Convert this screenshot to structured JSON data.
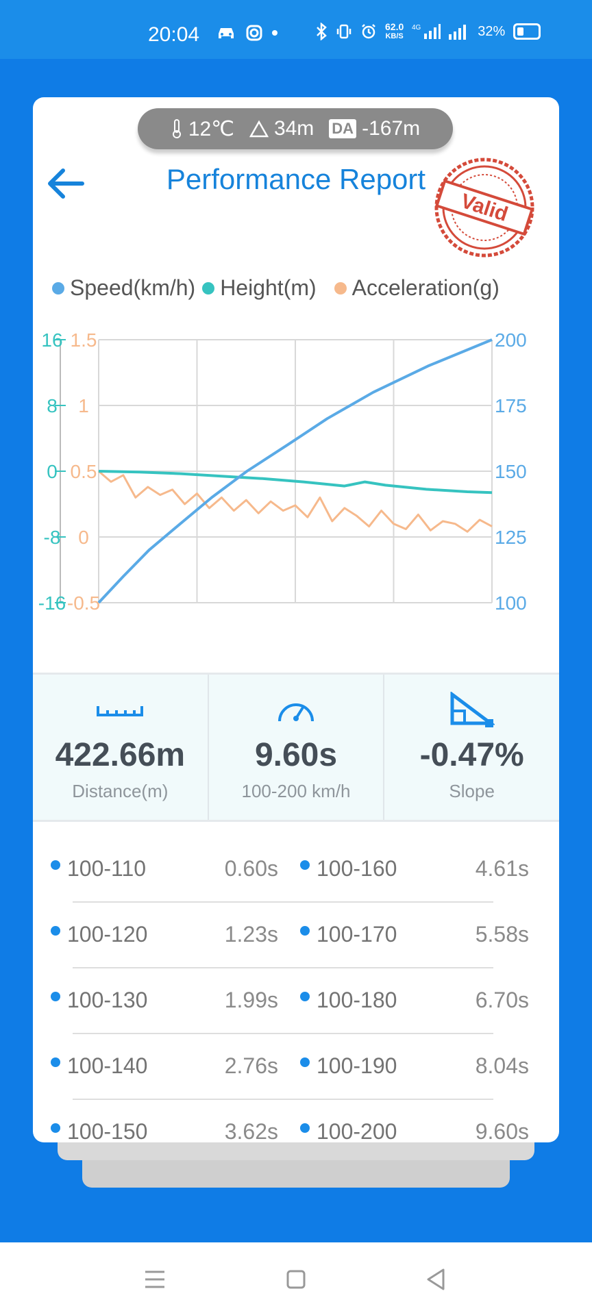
{
  "status_bar": {
    "time": "20:04",
    "net_speed": "62.0",
    "net_unit": "KB/S",
    "network": "4G",
    "battery": "32%"
  },
  "conditions": {
    "temperature": "12℃",
    "altitude": "34m",
    "da_label": "DA",
    "density_altitude": "-167m"
  },
  "header": {
    "title": "Performance Report",
    "stamp_text": "Valid"
  },
  "legend": [
    {
      "label": "Speed(km/h)",
      "color": "#5aaae6"
    },
    {
      "label": "Height(m)",
      "color": "#36c3c0"
    },
    {
      "label": "Acceleration(g)",
      "color": "#f6b98c"
    }
  ],
  "chart_data": {
    "type": "line",
    "height_axis": {
      "ticks": [
        "16",
        "8",
        "0",
        "-8",
        "-16"
      ],
      "range": [
        -16,
        16
      ]
    },
    "accel_axis": {
      "ticks": [
        "1.5",
        "1",
        "0.5",
        "0",
        "-0.5"
      ],
      "range": [
        -0.5,
        1.5
      ]
    },
    "speed_axis": {
      "ticks": [
        "200",
        "175",
        "150",
        "125",
        "100"
      ],
      "range": [
        100,
        200
      ]
    },
    "x_range": [
      0,
      9.6
    ],
    "series": [
      {
        "name": "Speed(km/h)",
        "axis": "speed",
        "color": "#5aaae6",
        "x": [
          0,
          0.6,
          1.23,
          1.99,
          2.76,
          3.62,
          4.61,
          5.58,
          6.7,
          8.04,
          9.6
        ],
        "y": [
          100,
          110,
          120,
          130,
          140,
          150,
          160,
          170,
          180,
          190,
          200
        ]
      },
      {
        "name": "Height(m)",
        "axis": "height",
        "color": "#36c3c0",
        "x": [
          0,
          1,
          2,
          3,
          4,
          5,
          6,
          6.5,
          7,
          8,
          9,
          9.6
        ],
        "y": [
          0,
          -0.1,
          -0.3,
          -0.6,
          -0.9,
          -1.3,
          -1.8,
          -1.3,
          -1.7,
          -2.2,
          -2.5,
          -2.6
        ]
      },
      {
        "name": "Acceleration(g)",
        "axis": "accel",
        "color": "#f6b98c",
        "x": [
          0,
          0.3,
          0.6,
          0.9,
          1.2,
          1.5,
          1.8,
          2.1,
          2.4,
          2.7,
          3.0,
          3.3,
          3.6,
          3.9,
          4.2,
          4.5,
          4.8,
          5.1,
          5.4,
          5.7,
          6.0,
          6.3,
          6.6,
          6.9,
          7.2,
          7.5,
          7.8,
          8.1,
          8.4,
          8.7,
          9.0,
          9.3,
          9.6
        ],
        "y": [
          0.5,
          0.42,
          0.47,
          0.3,
          0.38,
          0.32,
          0.36,
          0.25,
          0.33,
          0.22,
          0.3,
          0.2,
          0.28,
          0.18,
          0.27,
          0.2,
          0.24,
          0.15,
          0.3,
          0.12,
          0.22,
          0.16,
          0.08,
          0.2,
          0.1,
          0.06,
          0.17,
          0.05,
          0.12,
          0.1,
          0.04,
          0.13,
          0.08
        ]
      }
    ]
  },
  "stats": [
    {
      "value": "422.66m",
      "label": "Distance(m)",
      "icon": "ruler-icon"
    },
    {
      "value": "9.60s",
      "label": "100-200 km/h",
      "icon": "speedometer-icon"
    },
    {
      "value": "-0.47%",
      "label": "Slope",
      "icon": "slope-icon"
    }
  ],
  "splits": [
    {
      "left_label": "100-110",
      "left_value": "0.60s",
      "right_label": "100-160",
      "right_value": "4.61s"
    },
    {
      "left_label": "100-120",
      "left_value": "1.23s",
      "right_label": "100-170",
      "right_value": "5.58s"
    },
    {
      "left_label": "100-130",
      "left_value": "1.99s",
      "right_label": "100-180",
      "right_value": "6.70s"
    },
    {
      "left_label": "100-140",
      "left_value": "2.76s",
      "right_label": "100-190",
      "right_value": "8.04s"
    },
    {
      "left_label": "100-150",
      "left_value": "3.62s",
      "right_label": "100-200",
      "right_value": "9.60s"
    }
  ]
}
